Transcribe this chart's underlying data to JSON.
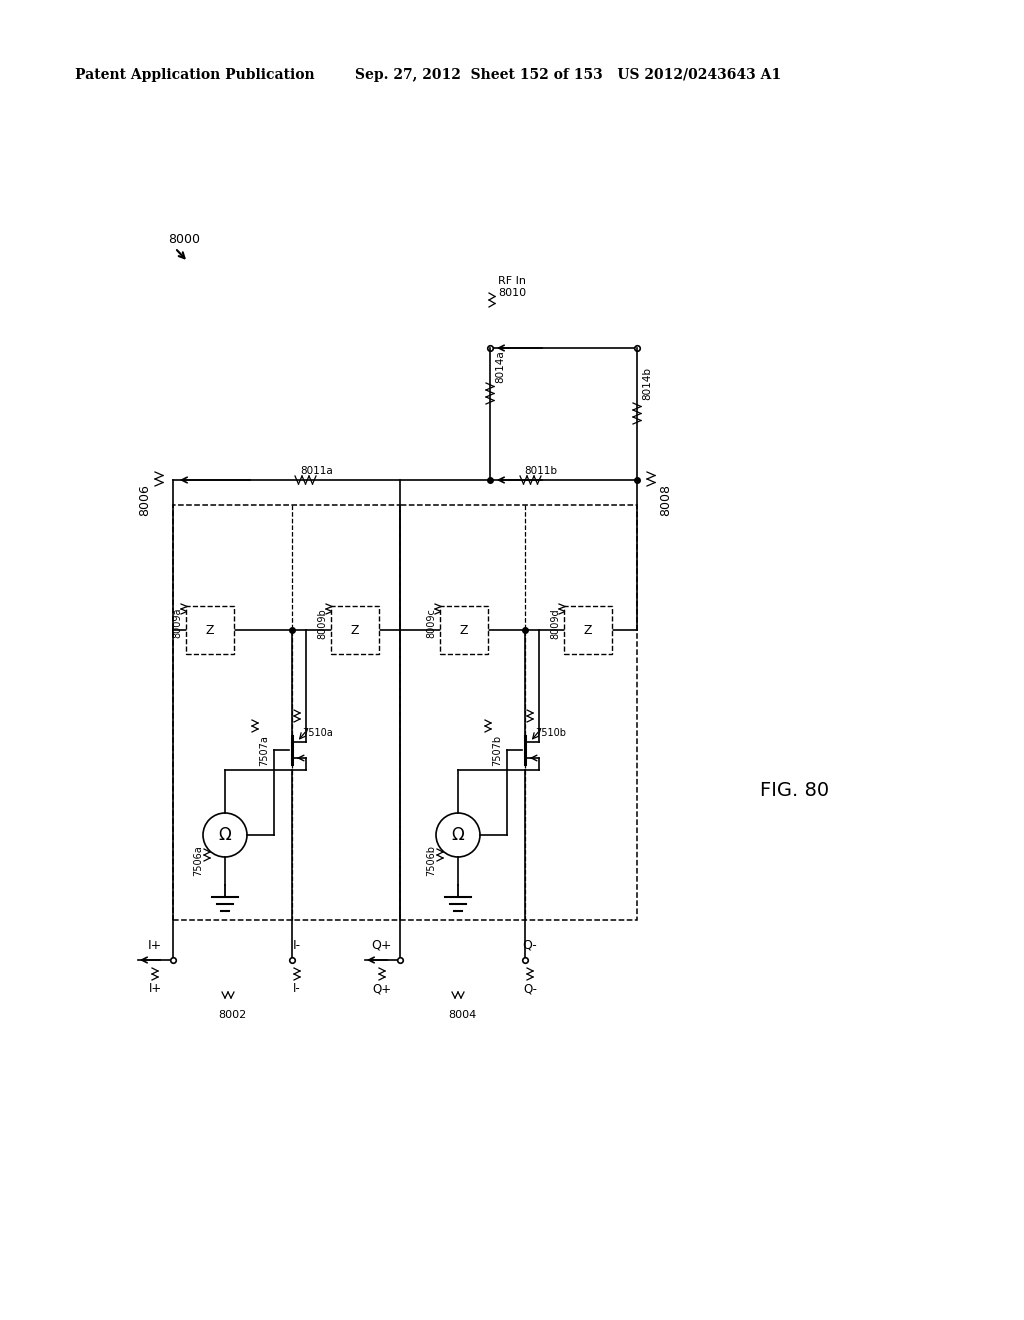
{
  "header1": "Patent Application Publication",
  "header2": "Sep. 27, 2012  Sheet 152 of 153   US 2012/0243643 A1",
  "fig_label": "FIG. 80",
  "bg": "#ffffff",
  "lbl_8000": "8000",
  "lbl_8006": "8006",
  "lbl_8008": "8008",
  "lbl_8010_1": "RF In",
  "lbl_8010_2": "8010",
  "lbl_8011a": "8011a",
  "lbl_8011b": "8011b",
  "lbl_8014a": "8014a",
  "lbl_8014b": "8014b",
  "lbl_8009a": "8009a",
  "lbl_8009b": "8009b",
  "lbl_8009c": "8009c",
  "lbl_8009d": "8009d",
  "lbl_7510a": "7510a",
  "lbl_7510b": "7510b",
  "lbl_7507a": "7507a",
  "lbl_7507b": "7507b",
  "lbl_7506a": "7506a",
  "lbl_7506b": "7506b",
  "lbl_8002": "8002",
  "lbl_8004": "8004",
  "lbl_Ip": "I+",
  "lbl_Im": "I-",
  "lbl_Qp": "Q+",
  "lbl_Qm": "Q-"
}
